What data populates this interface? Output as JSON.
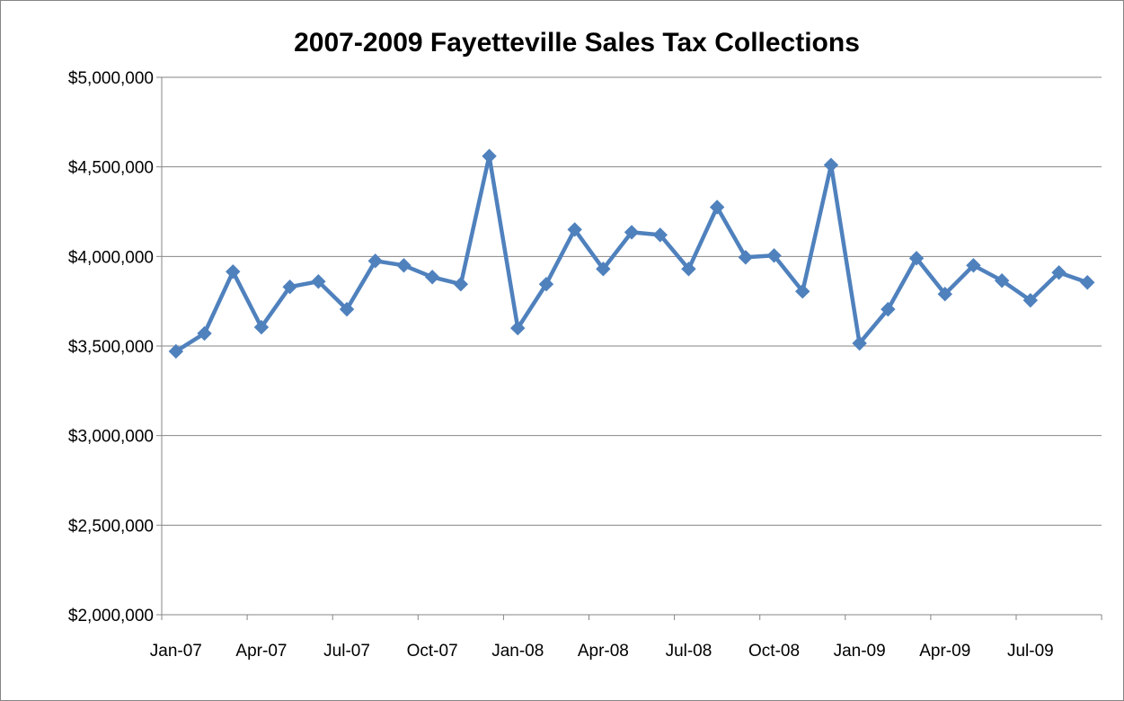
{
  "chart_data": {
    "type": "line",
    "title": "2007-2009 Fayetteville Sales Tax Collections",
    "xlabel": "",
    "ylabel": "",
    "ylim": [
      2000000,
      5000000
    ],
    "y_ticks": [
      2000000,
      2500000,
      3000000,
      3500000,
      4000000,
      4500000,
      5000000
    ],
    "y_tick_labels": [
      "$2,000,000",
      "$2,500,000",
      "$3,000,000",
      "$3,500,000",
      "$4,000,000",
      "$4,500,000",
      "$5,000,000"
    ],
    "x_tick_labels": [
      "Jan-07",
      "Apr-07",
      "Jul-07",
      "Oct-07",
      "Jan-08",
      "Apr-08",
      "Jul-08",
      "Oct-08",
      "Jan-09",
      "Apr-09",
      "Jul-09"
    ],
    "grid": "horizontal",
    "legend": "none",
    "line_color": "#4F81BD",
    "series": [
      {
        "x": [
          "Jan-07",
          "Feb-07",
          "Mar-07",
          "Apr-07",
          "May-07",
          "Jun-07",
          "Jul-07",
          "Aug-07",
          "Sep-07",
          "Oct-07",
          "Nov-07",
          "Dec-07",
          "Jan-08",
          "Feb-08",
          "Mar-08",
          "Apr-08",
          "May-08",
          "Jun-08",
          "Jul-08",
          "Aug-08",
          "Sep-08",
          "Oct-08",
          "Nov-08",
          "Dec-08",
          "Jan-09",
          "Feb-09",
          "Mar-09",
          "Apr-09",
          "May-09",
          "Jun-09",
          "Jul-09",
          "Aug-09",
          "Sep-09"
        ],
        "values": [
          3470000,
          3570000,
          3915000,
          3605000,
          3830000,
          3860000,
          3705000,
          3975000,
          3950000,
          3885000,
          3845000,
          4560000,
          3600000,
          3845000,
          4150000,
          3930000,
          4135000,
          4120000,
          3930000,
          4275000,
          3995000,
          4005000,
          3805000,
          4510000,
          3515000,
          3705000,
          3990000,
          3790000,
          3950000,
          3865000,
          3755000,
          3910000,
          3855000
        ]
      }
    ]
  }
}
